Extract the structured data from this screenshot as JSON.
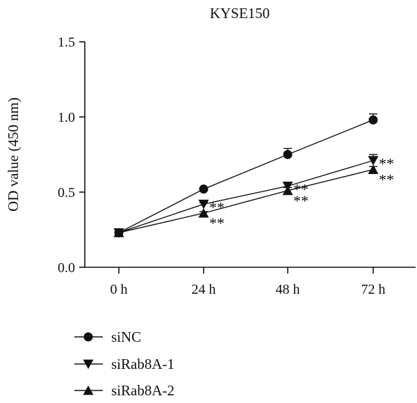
{
  "chart_data": {
    "type": "line",
    "title": "KYSE150",
    "xlabel": "",
    "ylabel": "OD value (450 nm)",
    "categories": [
      "0 h",
      "24 h",
      "48 h",
      "72 h"
    ],
    "ylim": [
      0.0,
      1.5
    ],
    "yticks": [
      "0.0",
      "0.5",
      "1.0",
      "1.5"
    ],
    "grid": false,
    "legend_position": "bottom-left",
    "series": [
      {
        "name": "siNC",
        "marker": "circle",
        "values": [
          0.23,
          0.52,
          0.75,
          0.98
        ],
        "errors": [
          0.02,
          0.01,
          0.04,
          0.04
        ]
      },
      {
        "name": "siRab8A-1",
        "marker": "triangle-down",
        "values": [
          0.23,
          0.42,
          0.54,
          0.71
        ],
        "errors": [
          0.02,
          0.01,
          0.02,
          0.04
        ]
      },
      {
        "name": "siRab8A-2",
        "marker": "triangle-up",
        "values": [
          0.23,
          0.36,
          0.51,
          0.65
        ],
        "errors": [
          0.02,
          0.01,
          0.02,
          0.02
        ]
      }
    ],
    "annotations": [
      {
        "text": "**",
        "series": "siRab8A-1",
        "category": "24 h"
      },
      {
        "text": "**",
        "series": "siRab8A-2",
        "category": "24 h"
      },
      {
        "text": "**",
        "series": "siRab8A-1",
        "category": "48 h"
      },
      {
        "text": "**",
        "series": "siRab8A-2",
        "category": "48 h"
      },
      {
        "text": "**",
        "series": "siRab8A-1",
        "category": "72 h"
      },
      {
        "text": "**",
        "series": "siRab8A-2",
        "category": "72 h"
      }
    ]
  }
}
